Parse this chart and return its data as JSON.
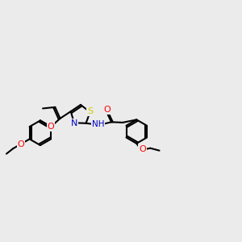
{
  "bg_color": "#ebebeb",
  "bond_color": "#000000",
  "bond_width": 1.5,
  "figsize": [
    3.0,
    3.0
  ],
  "dpi": 100,
  "atom_colors": {
    "O": "#ff0000",
    "N": "#0000cd",
    "S": "#cccc00",
    "C": "#000000",
    "H": "#008080"
  },
  "font_size": 8.0
}
